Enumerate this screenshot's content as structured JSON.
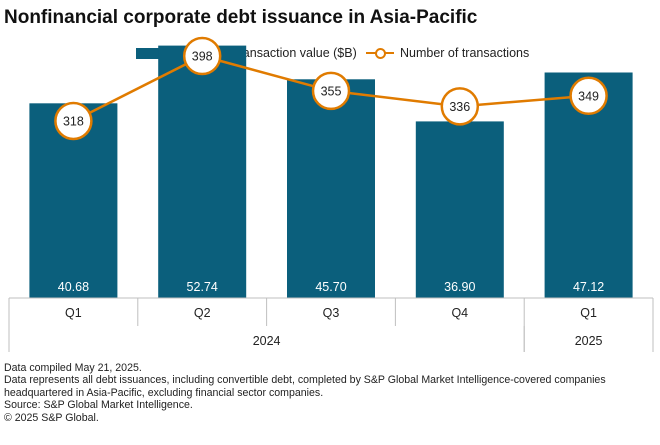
{
  "title": "Nonfinancial corporate debt issuance in Asia-Pacific",
  "colors": {
    "bar": "#0b5f7c",
    "line": "#e07b00",
    "bar_label": "#ffffff",
    "grid": "#bfbfbf"
  },
  "chart_data": {
    "type": "bar+line",
    "title": "Nonfinancial corporate debt issuance in Asia-Pacific",
    "categories": [
      "Q1",
      "Q2",
      "Q3",
      "Q4",
      "Q1"
    ],
    "groups": [
      {
        "label": "2024",
        "span": [
          0,
          3
        ]
      },
      {
        "label": "2025",
        "span": [
          4,
          4
        ]
      }
    ],
    "series": [
      {
        "name": "Aggregate transaction value ($B)",
        "type": "bar",
        "axis": "left",
        "values": [
          40.68,
          52.74,
          45.7,
          36.9,
          47.12
        ],
        "labels": [
          "40.68",
          "52.74",
          "45.70",
          "36.90",
          "47.12"
        ]
      },
      {
        "name": "Number of transactions",
        "type": "line",
        "axis": "right",
        "values": [
          318,
          398,
          355,
          336,
          349
        ],
        "labels": [
          "318",
          "398",
          "355",
          "336",
          "349"
        ]
      }
    ],
    "left_ylim": [
      0,
      56
    ],
    "right_ylim": [
      100,
      430
    ],
    "legend_position": "top-center",
    "grid": false
  },
  "notes": {
    "compiled": "Data compiled May 21, 2025.",
    "description": "Data represents all debt issuances, including convertible debt, completed by S&P Global Market Intelligence-covered companies headquartered in Asia-Pacific, excluding financial sector companies.",
    "source": "Source: S&P Global Market Intelligence.",
    "copyright": "© 2025 S&P Global."
  }
}
